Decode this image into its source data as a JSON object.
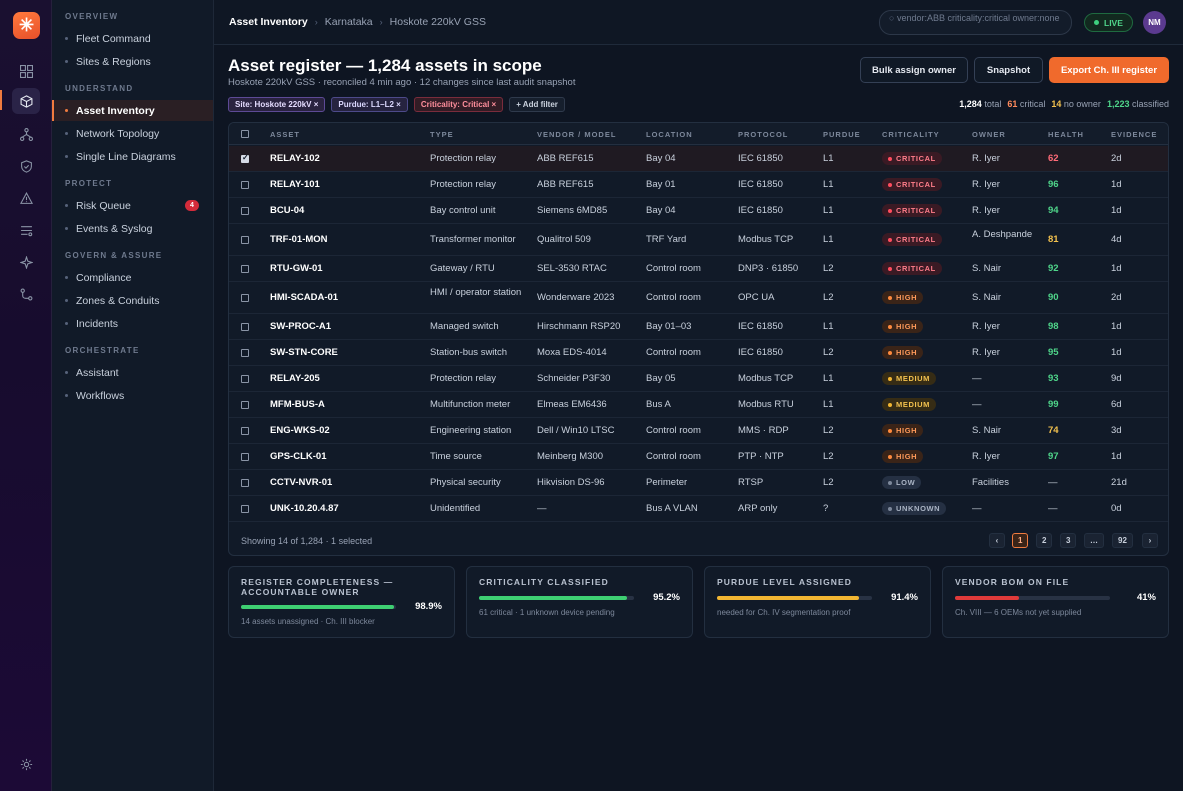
{
  "rail": {
    "logo": "✳",
    "icons": [
      "grid-icon",
      "cube-icon",
      "network-icon",
      "shield-icon",
      "alert-icon",
      "list-icon",
      "sparkle-icon",
      "route-icon"
    ],
    "settings_icon": "settings-icon",
    "accent": "#f07b3f"
  },
  "nav": {
    "sections": {
      "overview": "OVERVIEW",
      "understand": "UNDERSTAND",
      "protect": "PROTECT",
      "govern": "GOVERN & ASSURE",
      "orchestrate": "ORCHESTRATE"
    },
    "items": {
      "fleet": "Fleet Command",
      "sites": "Sites & Regions",
      "asset_inventory": "Asset Inventory",
      "network_topology": "Network Topology",
      "single_line": "Single Line Diagrams",
      "risk_queue": "Risk Queue",
      "risk_queue_badge": "4",
      "events": "Events & Syslog",
      "compliance": "Compliance",
      "zones": "Zones & Conduits",
      "incidents": "Incidents",
      "assistant": "Assistant",
      "workflows": "Workflows"
    }
  },
  "topbar": {
    "breadcrumbs": [
      "Asset Inventory",
      "Karnataka",
      "Hoskote 220kV GSS"
    ],
    "search_value": "vendor:ABB criticality:critical owner:none",
    "live_label": "LIVE",
    "avatar_initials": "NM"
  },
  "header": {
    "title": "Asset register — 1,284 assets in scope",
    "subtitle": "Hoskote 220kV GSS · reconciled 4 min ago · 12 changes since last audit snapshot",
    "buttons": {
      "bulk_assign": "Bulk assign owner",
      "snapshot": "Snapshot",
      "export": "Export Ch. III register"
    }
  },
  "filters": {
    "chips": [
      "Site: Hoskote 220kV ×",
      "Purdue: L1–L2 ×",
      "Criticality: Critical ×",
      "+ Add filter"
    ],
    "stats": {
      "total_value": "1,284",
      "total_label": "total",
      "critical_value": "61",
      "critical_label": "critical",
      "noowner_value": "14",
      "noowner_label": "no owner",
      "classified_value": "1,223",
      "classified_label": "classified"
    }
  },
  "table": {
    "columns": [
      "ASSET",
      "TYPE",
      "VENDOR / MODEL",
      "LOCATION",
      "PROTOCOL",
      "PURDUE",
      "CRITICALITY",
      "OWNER",
      "HEALTH",
      "EVIDENCE"
    ],
    "rows": [
      {
        "selected": true,
        "asset": "RELAY-102",
        "type": "Protection relay",
        "vendor": "ABB REF615",
        "location": "Bay 04",
        "protocol": "IEC 61850",
        "purdue": "L1",
        "criticality": "CRITICAL",
        "owner": "R. Iyer",
        "health": "62",
        "evidence": "2d"
      },
      {
        "selected": false,
        "asset": "RELAY-101",
        "type": "Protection relay",
        "vendor": "ABB REF615",
        "location": "Bay 01",
        "protocol": "IEC 61850",
        "purdue": "L1",
        "criticality": "CRITICAL",
        "owner": "R. Iyer",
        "health": "96",
        "evidence": "1d"
      },
      {
        "selected": false,
        "asset": "BCU-04",
        "type": "Bay control unit",
        "vendor": "Siemens 6MD85",
        "location": "Bay 04",
        "protocol": "IEC 61850",
        "purdue": "L1",
        "criticality": "CRITICAL",
        "owner": "R. Iyer",
        "health": "94",
        "evidence": "1d"
      },
      {
        "selected": false,
        "asset": "TRF-01-MON",
        "type": "Transformer monitor",
        "vendor": "Qualitrol 509",
        "location": "TRF Yard",
        "protocol": "Modbus TCP",
        "purdue": "L1",
        "criticality": "CRITICAL",
        "owner": "A. Deshpande",
        "health": "81",
        "evidence": "4d"
      },
      {
        "selected": false,
        "asset": "RTU-GW-01",
        "type": "Gateway / RTU",
        "vendor": "SEL-3530 RTAC",
        "location": "Control room",
        "protocol": "DNP3 · 61850",
        "purdue": "L2",
        "criticality": "CRITICAL",
        "owner": "S. Nair",
        "health": "92",
        "evidence": "1d"
      },
      {
        "selected": false,
        "asset": "HMI-SCADA-01",
        "type": "HMI / operator station",
        "vendor": "Wonderware 2023",
        "location": "Control room",
        "protocol": "OPC UA",
        "purdue": "L2",
        "criticality": "HIGH",
        "owner": "S. Nair",
        "health": "90",
        "evidence": "2d"
      },
      {
        "selected": false,
        "asset": "SW-PROC-A1",
        "type": "Managed switch",
        "vendor": "Hirschmann RSP20",
        "location": "Bay 01–03",
        "protocol": "IEC 61850",
        "purdue": "L1",
        "criticality": "HIGH",
        "owner": "R. Iyer",
        "health": "98",
        "evidence": "1d"
      },
      {
        "selected": false,
        "asset": "SW-STN-CORE",
        "type": "Station-bus switch",
        "vendor": "Moxa EDS-4014",
        "location": "Control room",
        "protocol": "IEC 61850",
        "purdue": "L2",
        "criticality": "HIGH",
        "owner": "R. Iyer",
        "health": "95",
        "evidence": "1d"
      },
      {
        "selected": false,
        "asset": "RELAY-205",
        "type": "Protection relay",
        "vendor": "Schneider P3F30",
        "location": "Bay 05",
        "protocol": "Modbus TCP",
        "purdue": "L1",
        "criticality": "MEDIUM",
        "owner": "—",
        "health": "93",
        "evidence": "9d"
      },
      {
        "selected": false,
        "asset": "MFM-BUS-A",
        "type": "Multifunction meter",
        "vendor": "Elmeas EM6436",
        "location": "Bus A",
        "protocol": "Modbus RTU",
        "purdue": "L1",
        "criticality": "MEDIUM",
        "owner": "—",
        "health": "99",
        "evidence": "6d"
      },
      {
        "selected": false,
        "asset": "ENG-WKS-02",
        "type": "Engineering station",
        "vendor": "Dell / Win10 LTSC",
        "location": "Control room",
        "protocol": "MMS · RDP",
        "purdue": "L2",
        "criticality": "HIGH",
        "owner": "S. Nair",
        "health": "74",
        "evidence": "3d"
      },
      {
        "selected": false,
        "asset": "GPS-CLK-01",
        "type": "Time source",
        "vendor": "Meinberg M300",
        "location": "Control room",
        "protocol": "PTP · NTP",
        "purdue": "L2",
        "criticality": "HIGH",
        "owner": "R. Iyer",
        "health": "97",
        "evidence": "1d"
      },
      {
        "selected": false,
        "asset": "CCTV-NVR-01",
        "type": "Physical security",
        "vendor": "Hikvision DS-96",
        "location": "Perimeter",
        "protocol": "RTSP",
        "purdue": "L2",
        "criticality": "LOW",
        "owner": "Facilities",
        "health": "—",
        "evidence": "21d"
      },
      {
        "selected": false,
        "asset": "UNK-10.20.4.87",
        "type": "Unidentified",
        "vendor": "—",
        "location": "Bus A VLAN",
        "protocol": "ARP only",
        "purdue": "?",
        "criticality": "UNKNOWN",
        "owner": "—",
        "health": "—",
        "evidence": "0d"
      }
    ],
    "footer_text": "Showing 14 of 1,284 · 1 selected",
    "pagination": [
      "‹",
      "1",
      "2",
      "3",
      "…",
      "92",
      "›"
    ],
    "criticality_colors": {
      "CRITICAL": {
        "fg": "#ff7d8a",
        "bg": "#3a1a24",
        "dot": "#ff4d5e"
      },
      "HIGH": {
        "fg": "#ff9a5a",
        "bg": "#3a2418",
        "dot": "#ff8a3d"
      },
      "MEDIUM": {
        "fg": "#f2c14e",
        "bg": "#362c15",
        "dot": "#f2b632"
      },
      "LOW": {
        "fg": "#aab4c4",
        "bg": "#253043",
        "dot": "#7d889b"
      },
      "UNKNOWN": {
        "fg": "#aab4c4",
        "bg": "#253043",
        "dot": "#7d889b"
      }
    },
    "health_colors": {
      "high": "#4fd58a",
      "mid": "#f2c14e",
      "low": "#ff6b78",
      "none": "#c9d1dd"
    }
  },
  "cards": [
    {
      "title": "REGISTER COMPLETENESS — ACCOUNTABLE OWNER",
      "percent": "98.9%",
      "fill": 0.989,
      "color": "#3ecf72",
      "note": "14 assets unassigned · Ch. III blocker"
    },
    {
      "title": "CRITICALITY CLASSIFIED",
      "percent": "95.2%",
      "fill": 0.952,
      "color": "#3ecf72",
      "note": "61 critical · 1 unknown device pending"
    },
    {
      "title": "PURDUE LEVEL ASSIGNED",
      "percent": "91.4%",
      "fill": 0.914,
      "color": "#f2b632",
      "note": "needed for Ch. IV segmentation proof"
    },
    {
      "title": "VENDOR BOM ON FILE",
      "percent": "41%",
      "fill": 0.41,
      "color": "#e03a3a",
      "note": "Ch. VIII — 6 OEMs not yet supplied"
    }
  ]
}
